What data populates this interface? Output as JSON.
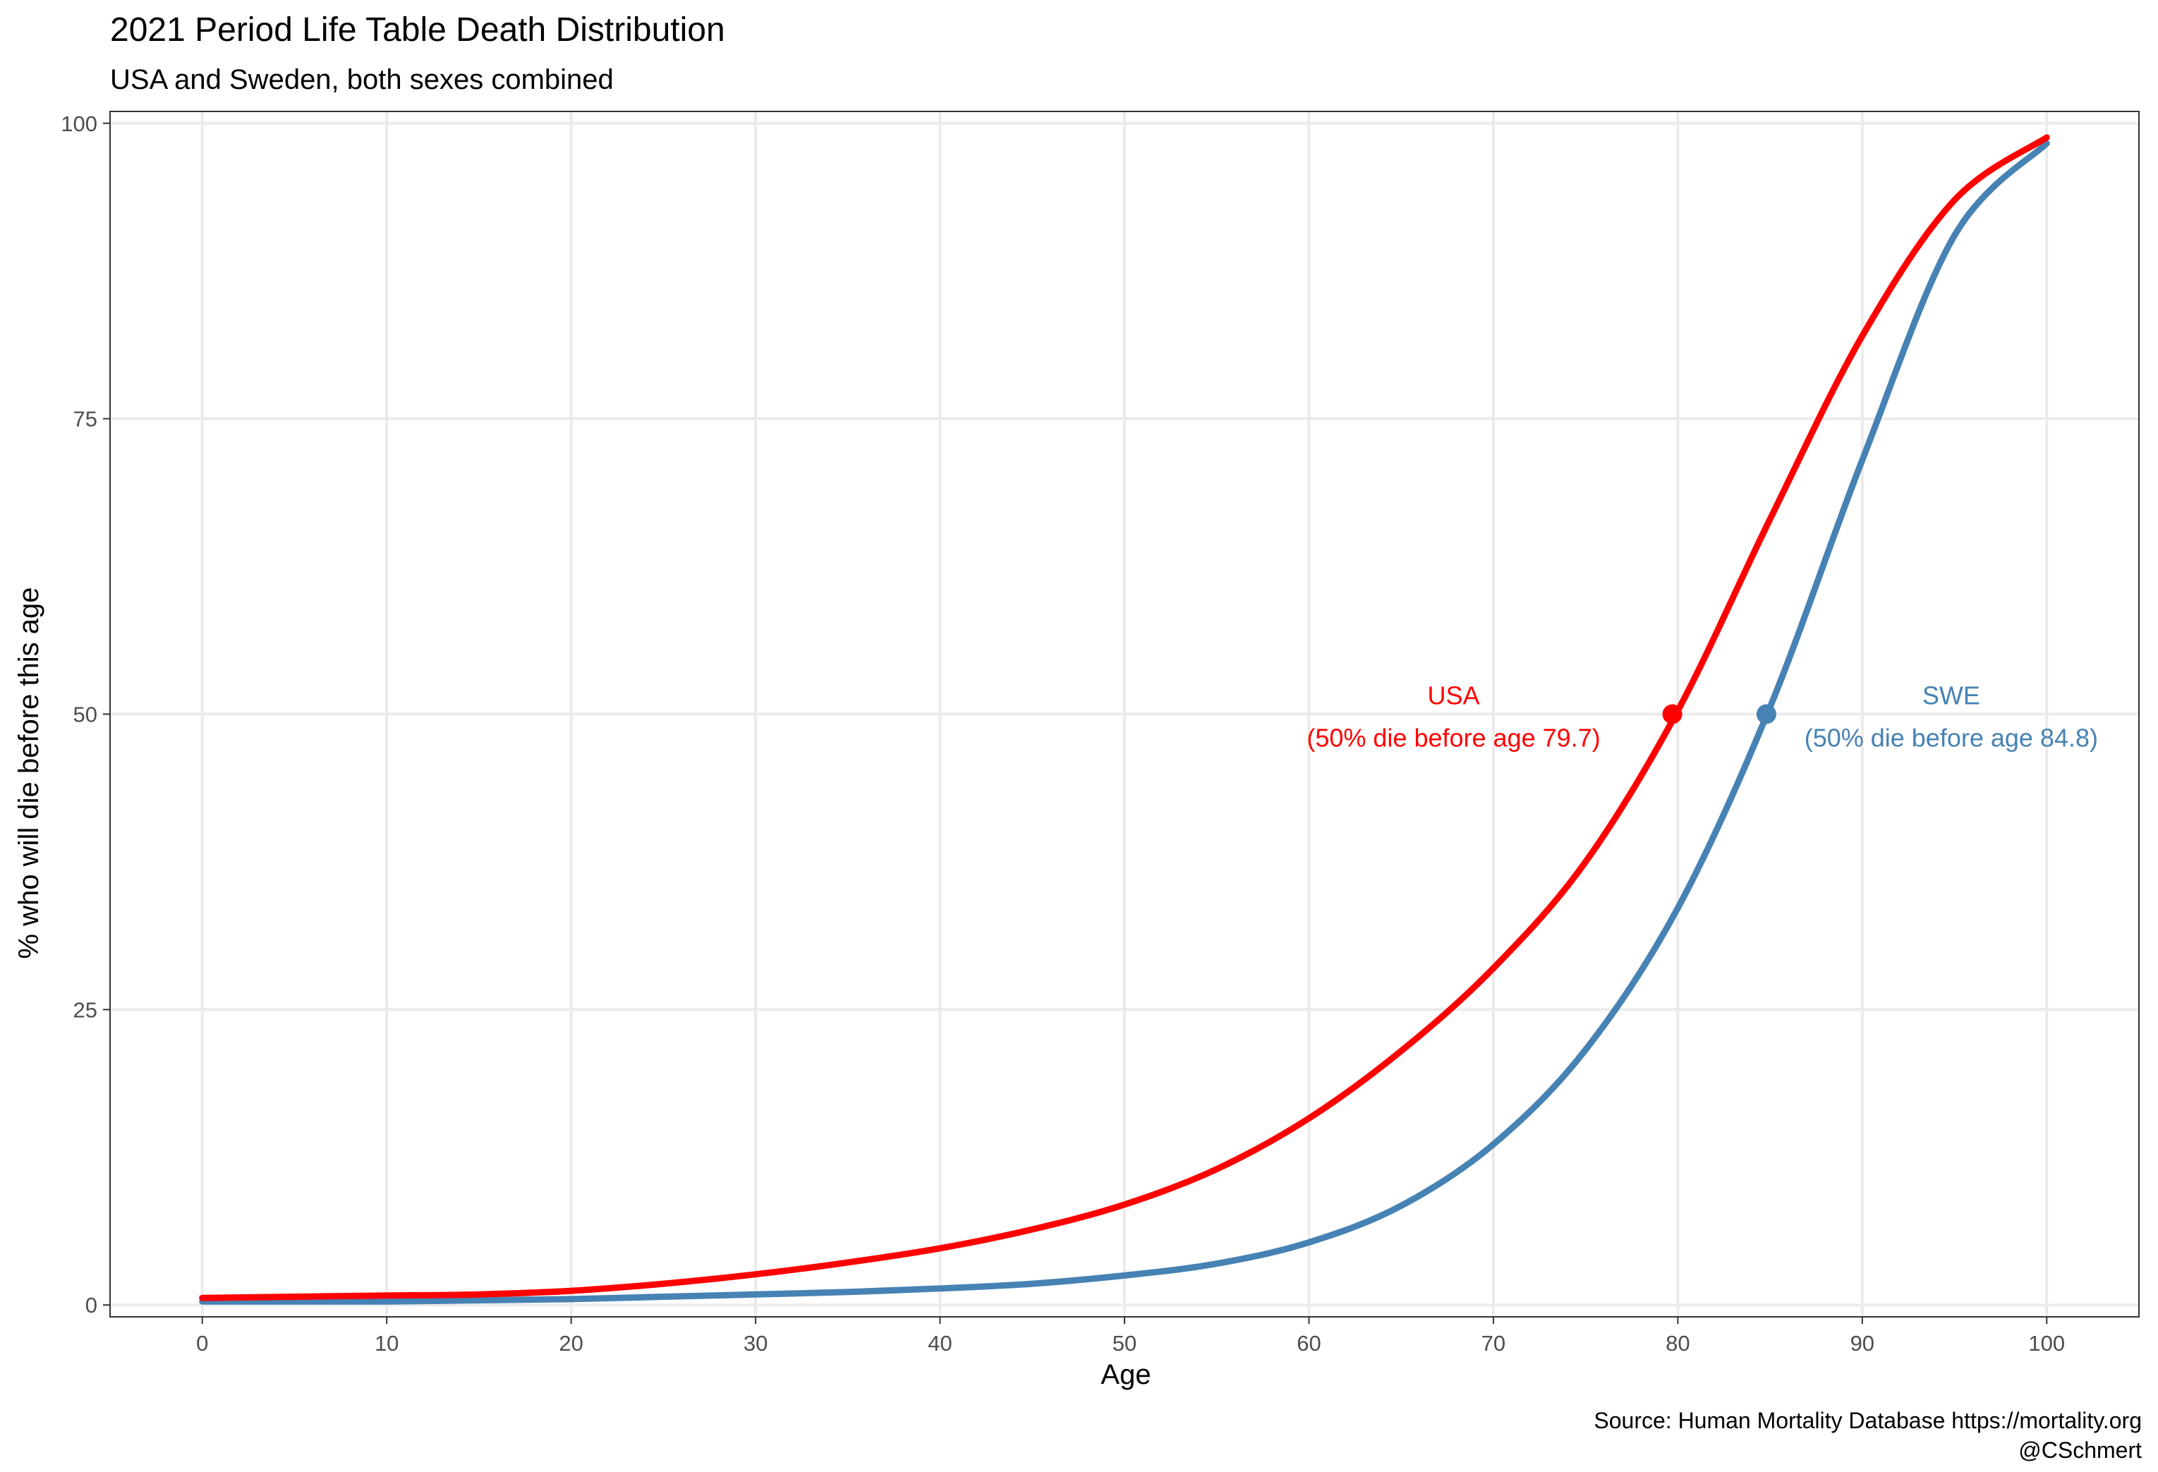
{
  "chart_data": {
    "type": "line",
    "title": "2021 Period Life Table Death Distribution",
    "subtitle": "USA and Sweden, both sexes combined",
    "xlabel": "Age",
    "ylabel": "% who will die before this age",
    "xlim": [
      -5,
      105
    ],
    "ylim": [
      -1,
      101
    ],
    "x_ticks": [
      0,
      10,
      20,
      30,
      40,
      50,
      60,
      70,
      80,
      90,
      100
    ],
    "x_tick_labels": [
      "0",
      "10",
      "20",
      "30",
      "40",
      "50",
      "60",
      "70",
      "80",
      "90",
      "100"
    ],
    "y_ticks": [
      0,
      25,
      50,
      75,
      100
    ],
    "y_tick_labels": [
      "0",
      "25",
      "50",
      "75",
      "100"
    ],
    "grid": true,
    "legend": "none",
    "x": [
      0,
      5,
      10,
      15,
      20,
      25,
      30,
      35,
      40,
      45,
      50,
      55,
      60,
      65,
      70,
      75,
      80,
      85,
      90,
      95,
      100
    ],
    "series": [
      {
        "name": "USA",
        "color": "#ff0000",
        "values": [
          0.6,
          0.7,
          0.8,
          0.9,
          1.2,
          1.8,
          2.6,
          3.6,
          4.8,
          6.4,
          8.5,
          11.5,
          15.8,
          21.5,
          28.5,
          37.5,
          50.3,
          66.5,
          82.0,
          93.5,
          98.8
        ]
      },
      {
        "name": "SWE",
        "color": "#4682b4",
        "values": [
          0.3,
          0.3,
          0.3,
          0.4,
          0.5,
          0.7,
          0.9,
          1.1,
          1.4,
          1.8,
          2.5,
          3.5,
          5.3,
          8.4,
          13.6,
          21.6,
          33.6,
          50.6,
          71.5,
          90.5,
          98.3
        ]
      }
    ],
    "medians": [
      {
        "name": "USA",
        "age": 79.7,
        "pct": 50,
        "color": "#ff0000",
        "label_line1": "USA",
        "label_line2": "(50% die before age 79.7)"
      },
      {
        "name": "SWE",
        "age": 84.8,
        "pct": 50,
        "color": "#4682b4",
        "label_line1": "SWE",
        "label_line2": "(50% die before age 84.8)"
      }
    ],
    "caption_line1": "Source: Human Mortality Database https://mortality.org",
    "caption_line2": "@CSchmert"
  }
}
